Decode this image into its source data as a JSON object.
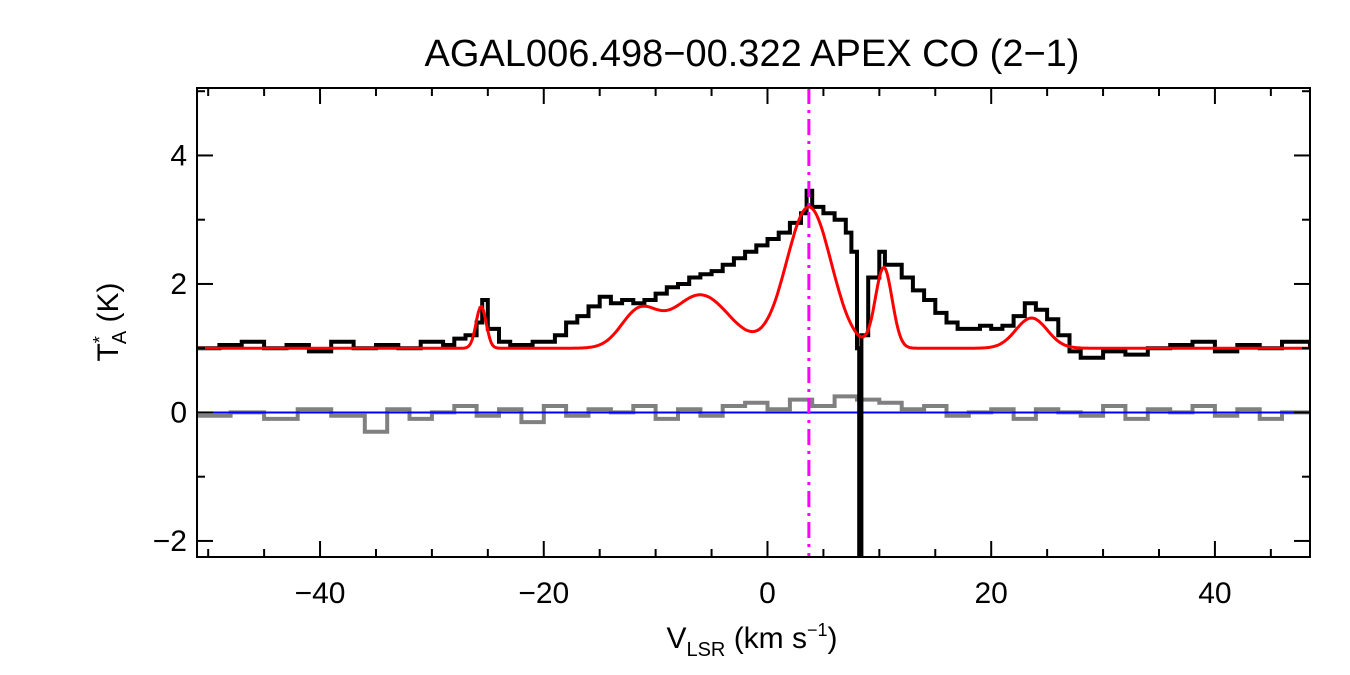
{
  "chart_data": {
    "type": "line",
    "title": "AGAL006.498−00.322  APEX CO (2−1)",
    "xlabel": {
      "main": "V",
      "sub": "LSR",
      "rest": " (km s",
      "sup": "−1",
      "close": ")"
    },
    "ylabel": {
      "main": "T",
      "sup": "*",
      "sub": "A",
      "rest": " (K)"
    },
    "xlim": [
      -51,
      48.5
    ],
    "ylim": [
      -2.25,
      5.05
    ],
    "xticks": [
      -40,
      -20,
      0,
      20,
      40
    ],
    "xtick_labels": [
      "−40",
      "−20",
      "0",
      "20",
      "40"
    ],
    "yticks": [
      -2,
      0,
      2,
      4
    ],
    "ytick_labels": [
      "−2",
      "0",
      "2",
      "4"
    ],
    "grid": false,
    "vline": {
      "x": 3.7,
      "color": "#ff00ff",
      "style": "dash-dot"
    },
    "colors": {
      "spectrum": "#000000",
      "residual": "#808080",
      "fit": "#ff0000",
      "zero_line": "#0000ff",
      "vline": "#ff00ff"
    },
    "series": [
      {
        "role": "observed-spectrum",
        "style": "histogram",
        "x": [
          -51,
          -49,
          -47,
          -45,
          -43,
          -41,
          -39,
          -37,
          -35,
          -33,
          -31,
          -29,
          -28,
          -27,
          -26,
          -25.5,
          -25,
          -24,
          -23,
          -21,
          -19,
          -18,
          -17,
          -16,
          -15,
          -14,
          -13,
          -12,
          -11,
          -10,
          -9,
          -8,
          -7,
          -6,
          -5,
          -4,
          -3,
          -2,
          -1,
          0,
          1,
          2,
          3,
          3.5,
          4,
          5,
          6,
          7,
          7.5,
          8,
          8.2,
          8.4,
          9,
          10,
          10.5,
          11,
          12,
          13,
          14,
          15,
          16,
          17,
          18,
          19,
          20,
          21,
          22,
          23,
          24,
          25,
          26,
          27,
          28,
          30,
          32,
          34,
          36,
          38,
          40,
          42,
          44,
          46,
          48.5
        ],
        "y": [
          1.0,
          1.05,
          1.1,
          1.0,
          1.05,
          0.95,
          1.1,
          1.0,
          1.05,
          1.0,
          1.1,
          1.05,
          1.15,
          1.2,
          1.4,
          1.75,
          1.3,
          1.1,
          1.05,
          1.1,
          1.2,
          1.4,
          1.5,
          1.65,
          1.8,
          1.7,
          1.75,
          1.7,
          1.75,
          1.85,
          1.95,
          2.0,
          2.1,
          2.15,
          2.2,
          2.3,
          2.4,
          2.5,
          2.6,
          2.7,
          2.8,
          2.95,
          3.1,
          3.45,
          3.2,
          3.1,
          3.0,
          2.8,
          2.5,
          1.0,
          -2.25,
          1.2,
          2.1,
          2.5,
          2.3,
          2.3,
          2.1,
          1.9,
          1.75,
          1.55,
          1.4,
          1.3,
          1.3,
          1.35,
          1.3,
          1.35,
          1.5,
          1.7,
          1.6,
          1.45,
          1.2,
          0.95,
          0.85,
          0.95,
          0.9,
          1.0,
          1.05,
          1.1,
          0.95,
          1.05,
          1.0,
          1.1,
          1.0
        ]
      },
      {
        "role": "gaussian-fit",
        "baseline": 1.0,
        "components": [
          {
            "center": -25.6,
            "amplitude": 0.65,
            "sigma": 0.45
          },
          {
            "center": -11.5,
            "amplitude": 0.55,
            "sigma": 1.6
          },
          {
            "center": -6.0,
            "amplitude": 0.83,
            "sigma": 2.6
          },
          {
            "center": 3.7,
            "amplitude": 2.2,
            "sigma": 2.0
          },
          {
            "center": 10.4,
            "amplitude": 1.25,
            "sigma": 0.75
          },
          {
            "center": 23.6,
            "amplitude": 0.47,
            "sigma": 1.4
          }
        ]
      },
      {
        "role": "residual",
        "style": "histogram",
        "x": [
          -51,
          -48,
          -45,
          -42,
          -39,
          -36,
          -34,
          -32,
          -30,
          -28,
          -26,
          -24,
          -22,
          -20,
          -18,
          -16,
          -14,
          -12,
          -10,
          -8,
          -6,
          -4,
          -2,
          0,
          2,
          4,
          6,
          8,
          10,
          12,
          14,
          16,
          18,
          20,
          22,
          24,
          26,
          28,
          30,
          32,
          34,
          36,
          38,
          40,
          42,
          44,
          46,
          48.5
        ],
        "y": [
          -0.05,
          0.0,
          -0.1,
          0.05,
          -0.05,
          -0.3,
          0.05,
          -0.1,
          0.0,
          0.1,
          -0.05,
          0.05,
          -0.15,
          0.1,
          -0.05,
          0.05,
          0.0,
          0.1,
          -0.1,
          0.05,
          -0.05,
          0.1,
          0.15,
          0.05,
          0.2,
          0.1,
          0.25,
          0.2,
          0.15,
          0.05,
          0.1,
          -0.05,
          0.0,
          0.05,
          -0.1,
          0.05,
          0.0,
          -0.05,
          0.1,
          -0.1,
          0.05,
          0.0,
          0.1,
          -0.05,
          0.05,
          -0.1,
          0.0,
          0.0
        ]
      }
    ]
  }
}
